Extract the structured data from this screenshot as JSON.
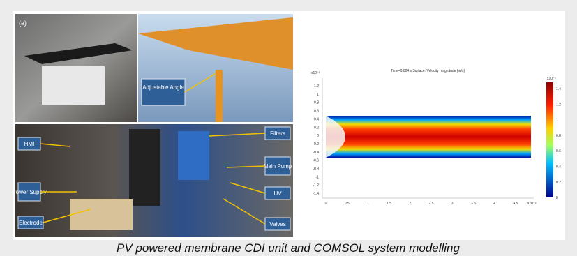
{
  "figure": {
    "panel_label": "(a)",
    "caption": "PV powered membrane CDI unit and COMSOL system modelling",
    "callouts": {
      "angle": "Adjustable Angle",
      "hmi": "HMI",
      "power": "Power Supply",
      "electrode": "Electrode",
      "filters": "Filters",
      "pump": "Main Pump",
      "uv": "UV",
      "valves": "Valves"
    },
    "plot": {
      "title": "Time=0.004 s   Surface: Velocity magnitude (m/s)",
      "y_exponent": "x10⁻³",
      "x_exponent": "x10⁻³",
      "colorbar_exponent": "x10⁻³",
      "yticks": [
        "1.2",
        "1",
        "0.8",
        "0.6",
        "0.4",
        "0.2",
        "0",
        "-0.2",
        "-0.4",
        "-0.6",
        "-0.8",
        "-1",
        "-1.2",
        "-1.4"
      ],
      "xticks": [
        "0",
        "0.5",
        "1",
        "1.5",
        "2",
        "2.5",
        "3",
        "3.5",
        "4",
        "4.5"
      ],
      "colorbar_ticks": [
        "1.4",
        "1.2",
        "1",
        "0.8",
        "0.6",
        "0.4",
        "0.2",
        "0"
      ]
    }
  }
}
